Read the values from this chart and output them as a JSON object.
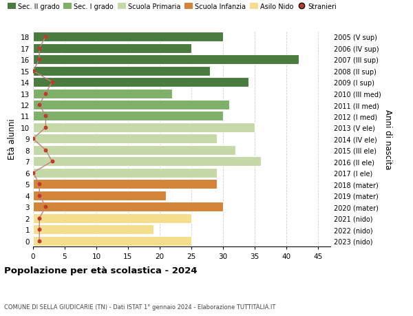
{
  "ages": [
    18,
    17,
    16,
    15,
    14,
    13,
    12,
    11,
    10,
    9,
    8,
    7,
    6,
    5,
    4,
    3,
    2,
    1,
    0
  ],
  "years_labels": [
    "2005 (V sup)",
    "2006 (IV sup)",
    "2007 (III sup)",
    "2008 (II sup)",
    "2009 (I sup)",
    "2010 (III med)",
    "2011 (II med)",
    "2012 (I med)",
    "2013 (V ele)",
    "2014 (IV ele)",
    "2015 (III ele)",
    "2016 (II ele)",
    "2017 (I ele)",
    "2018 (mater)",
    "2019 (mater)",
    "2020 (mater)",
    "2021 (nido)",
    "2022 (nido)",
    "2023 (nido)"
  ],
  "bar_values": [
    30,
    25,
    42,
    28,
    34,
    22,
    31,
    30,
    35,
    29,
    32,
    36,
    29,
    29,
    21,
    30,
    25,
    19,
    25
  ],
  "bar_colors": [
    "#4a7c3f",
    "#4a7c3f",
    "#4a7c3f",
    "#4a7c3f",
    "#4a7c3f",
    "#7fb069",
    "#7fb069",
    "#7fb069",
    "#c5d9a8",
    "#c5d9a8",
    "#c5d9a8",
    "#c5d9a8",
    "#c5d9a8",
    "#d2853a",
    "#d2853a",
    "#d2853a",
    "#f2de8c",
    "#f2de8c",
    "#f2de8c"
  ],
  "stranieri_values": [
    2,
    1,
    1,
    0,
    3,
    2,
    1,
    2,
    2,
    0,
    2,
    3,
    0,
    1,
    1,
    2,
    1,
    1,
    1
  ],
  "legend_labels": [
    "Sec. II grado",
    "Sec. I grado",
    "Scuola Primaria",
    "Scuola Infanzia",
    "Asilo Nido",
    "Stranieri"
  ],
  "legend_colors": [
    "#4a7c3f",
    "#7fb069",
    "#c5d9a8",
    "#d2853a",
    "#f2de8c",
    "#c0392b"
  ],
  "title": "Popolazione per età scolastica - 2024",
  "subtitle": "COMUNE DI SELLA GIUDICARIE (TN) - Dati ISTAT 1° gennaio 2024 - Elaborazione TUTTITALIA.IT",
  "ylabel": "Età alunni",
  "right_ylabel": "Anni di nascita",
  "xlim": [
    0,
    47
  ],
  "xticks": [
    0,
    5,
    10,
    15,
    20,
    25,
    30,
    35,
    40,
    45
  ],
  "background_color": "#ffffff",
  "grid_color": "#cccccc",
  "stranieri_color": "#c0392b",
  "stranieri_line_color": "#c08080"
}
